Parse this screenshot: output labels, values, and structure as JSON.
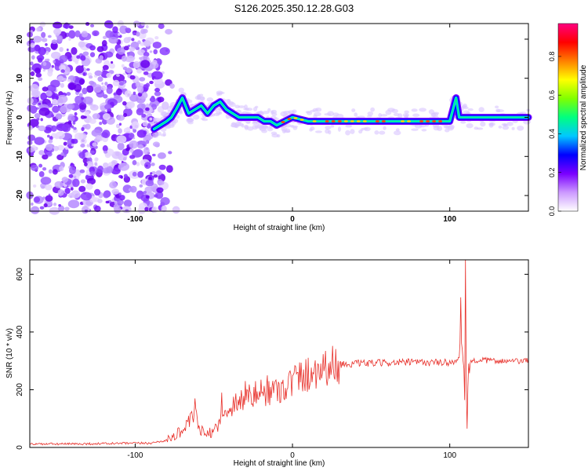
{
  "title": "S126.2025.350.12.28.G03",
  "chart_data": [
    {
      "type": "heatmap",
      "xlabel": "Height of straight line (km)",
      "ylabel": "Frequency (Hz)",
      "xlim": [
        -167,
        150
      ],
      "ylim": [
        -24,
        24
      ],
      "xticks": [
        -100,
        0,
        100
      ],
      "yticks": [
        -20,
        -10,
        0,
        10,
        20
      ],
      "colorbar": {
        "label": "Normalized spectral amplitude",
        "range": [
          0,
          0.97
        ],
        "ticks": [
          0.0,
          0.2,
          0.4,
          0.6,
          0.8
        ],
        "colors": [
          "#ffffff",
          "#cc99ff",
          "#7a00ff",
          "#0000ff",
          "#00c8ff",
          "#00ff80",
          "#80ff00",
          "#ffff00",
          "#ff8000",
          "#ff0000",
          "#ff0080"
        ]
      },
      "trace": {
        "x": [
          -88,
          -84,
          -80,
          -77,
          -74,
          -70,
          -66,
          -62,
          -58,
          -54,
          -50,
          -46,
          -42,
          -38,
          -34,
          -30,
          -26,
          -22,
          -18,
          -14,
          -10,
          -5,
          0,
          10,
          20,
          30,
          40,
          50,
          60,
          70,
          80,
          90,
          100,
          104,
          106,
          110,
          120,
          130,
          140,
          150
        ],
        "freq": [
          -3,
          -2,
          -1,
          0,
          2,
          5,
          1,
          2,
          3,
          1,
          3,
          4,
          2,
          1,
          0,
          0,
          0,
          0,
          -1,
          -1,
          -2,
          -1,
          0,
          -1,
          -1,
          -1,
          -1,
          -1,
          -1,
          -1,
          -1,
          -1,
          -1,
          5,
          0,
          0,
          0,
          0,
          0,
          0
        ]
      }
    },
    {
      "type": "line",
      "xlabel": "Height of straight line (km)",
      "ylabel": "SNR (10 * v/v)",
      "xlim": [
        -167,
        150
      ],
      "ylim": [
        0,
        650
      ],
      "xticks": [
        -100,
        0,
        100
      ],
      "yticks": [
        0,
        200,
        400,
        600
      ],
      "color": "#e8302a",
      "series": {
        "x": [
          -167,
          -140,
          -110,
          -90,
          -80,
          -75,
          -70,
          -65,
          -62,
          -60,
          -58,
          -55,
          -50,
          -45,
          -40,
          -35,
          -30,
          -25,
          -20,
          -15,
          -10,
          -5,
          0,
          5,
          10,
          15,
          20,
          25,
          30,
          40,
          50,
          60,
          70,
          80,
          90,
          100,
          105,
          108,
          110,
          112,
          115,
          120,
          130,
          140,
          150
        ],
        "y": [
          12,
          12,
          14,
          15,
          25,
          40,
          60,
          90,
          120,
          70,
          60,
          40,
          60,
          100,
          140,
          160,
          170,
          180,
          190,
          195,
          200,
          210,
          230,
          245,
          255,
          270,
          280,
          285,
          288,
          290,
          292,
          293,
          295,
          295,
          294,
          295,
          300,
          330,
          100,
          290,
          300,
          302,
          300,
          298,
          300
        ]
      },
      "spikes": [
        {
          "x": -62,
          "y": 170
        },
        {
          "x": -45,
          "y": 190
        },
        {
          "x": -30,
          "y": 230
        },
        {
          "x": -16,
          "y": 250
        },
        {
          "x": 3,
          "y": 260
        },
        {
          "x": 107,
          "y": 520
        },
        {
          "x": 110,
          "y": 650
        },
        {
          "x": 111,
          "y": 65
        }
      ]
    }
  ]
}
